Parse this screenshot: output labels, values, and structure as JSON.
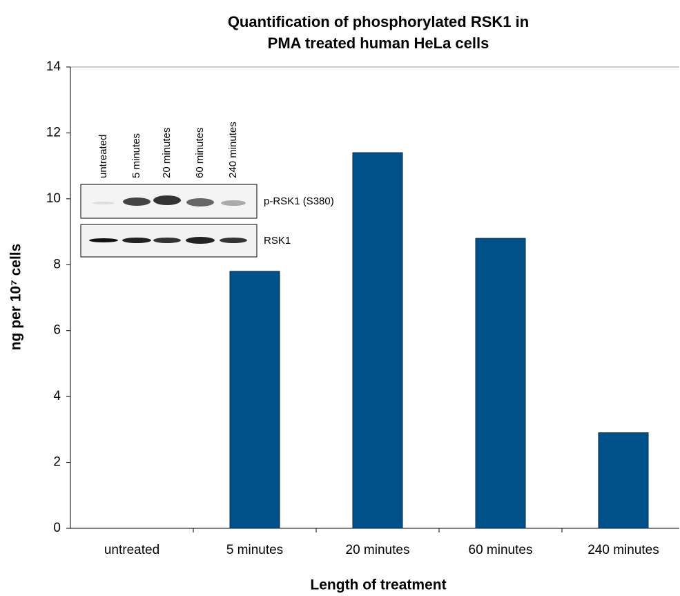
{
  "chart_data": {
    "type": "bar",
    "title": [
      "Quantification of phosphorylated RSK1 in",
      "PMA treated human HeLa cells"
    ],
    "x_label": "Length of treatment",
    "y_label": "ng per 10⁷ cells",
    "categories": [
      "untreated",
      "5 minutes",
      "20 minutes",
      "60 minutes",
      "240 minutes"
    ],
    "values": [
      0,
      7.8,
      11.4,
      8.8,
      2.9
    ],
    "color": "#00518a",
    "ylim": [
      0,
      14
    ],
    "yticks": [
      0,
      2,
      4,
      6,
      8,
      10,
      12,
      14
    ],
    "grid": false,
    "inset": {
      "rows": [
        "p-RSK1 (S380)",
        "RSK1"
      ]
    }
  }
}
